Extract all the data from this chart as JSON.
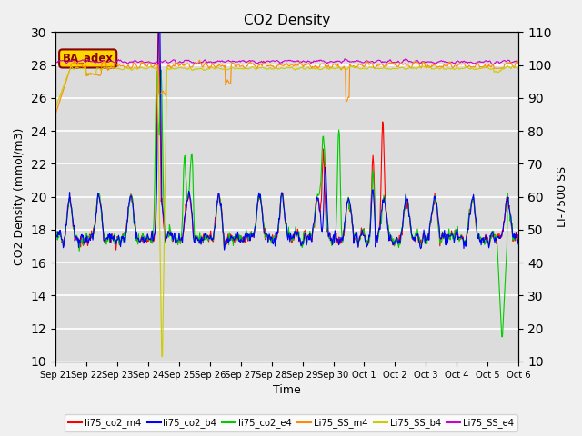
{
  "title": "CO2 Density",
  "xlabel": "Time",
  "ylabel_left": "CO2 Density (mmol/m3)",
  "ylabel_right": "LI-7500 SS",
  "ylim_left": [
    10,
    30
  ],
  "ylim_right": [
    10,
    110
  ],
  "annotation_text": "BA_adex",
  "annotation_color": "#8B0000",
  "annotation_bg": "#FFD700",
  "bg_color": "#DCDCDC",
  "fig_bg_color": "#F0F0F0",
  "series_colors": {
    "li75_co2_m4": "#FF0000",
    "li75_co2_b4": "#0000FF",
    "li75_co2_e4": "#00CC00",
    "Li75_SS_m4": "#FF8C00",
    "Li75_SS_b4": "#CCCC00",
    "Li75_SS_e4": "#CC00CC"
  },
  "legend_labels": [
    "li75_co2_m4",
    "li75_co2_b4",
    "li75_co2_e4",
    "Li75_SS_m4",
    "Li75_SS_b4",
    "Li75_SS_e4"
  ],
  "legend_colors": [
    "#FF0000",
    "#0000FF",
    "#00CC00",
    "#FF8C00",
    "#CCCC00",
    "#CC00CC"
  ],
  "xtick_labels": [
    "Sep 21",
    "Sep 22",
    "Sep 23",
    "Sep 24",
    "Sep 25",
    "Sep 26",
    "Sep 27",
    "Sep 28",
    "Sep 29",
    "Sep 30",
    "Oct 1",
    "Oct 2",
    "Oct 3",
    "Oct 4",
    "Oct 5",
    "Oct 6"
  ],
  "yticks_left": [
    10,
    12,
    14,
    16,
    18,
    20,
    22,
    24,
    26,
    28,
    30
  ],
  "yticks_right": [
    10,
    20,
    30,
    40,
    50,
    60,
    70,
    80,
    90,
    100,
    110
  ],
  "n_days": 16,
  "pts_per_day": 48
}
